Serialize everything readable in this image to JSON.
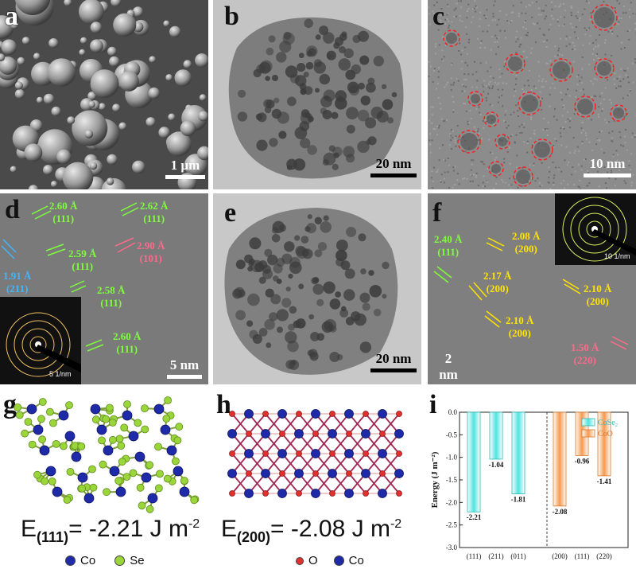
{
  "panels": {
    "a": {
      "label": "a",
      "scale": "1 µm"
    },
    "b": {
      "label": "b",
      "scale": "20 nm"
    },
    "c": {
      "label": "c",
      "scale": "10 nm"
    },
    "d": {
      "label": "d",
      "scale": "5 nm",
      "saed_scale": "5 1/nm",
      "fringes": [
        {
          "d": "2.60 Å",
          "hkl": "(111)",
          "color": "g"
        },
        {
          "d": "2.62 Å",
          "hkl": "(111)",
          "color": "g"
        },
        {
          "d": "2.59 Å",
          "hkl": "(111)",
          "color": "g"
        },
        {
          "d": "2.90 Å",
          "hkl": "(101)",
          "color": "p"
        },
        {
          "d": "1.91 Å",
          "hkl": "(211)",
          "color": "b"
        },
        {
          "d": "2.58 Å",
          "hkl": "(111)",
          "color": "g"
        },
        {
          "d": "2.60 Å",
          "hkl": "(111)",
          "color": "g"
        }
      ]
    },
    "e": {
      "label": "e",
      "scale": "20 nm"
    },
    "f": {
      "label": "f",
      "scale": "2 nm",
      "saed_scale": "10 1/nm",
      "fringes": [
        {
          "d": "2.40 Å",
          "hkl": "(111)",
          "color": "g"
        },
        {
          "d": "2.08 Å",
          "hkl": "(200)",
          "color": "y"
        },
        {
          "d": "2.17 Å",
          "hkl": "(200)",
          "color": "y"
        },
        {
          "d": "2.10 Å",
          "hkl": "(200)",
          "color": "y"
        },
        {
          "d": "2.10 Å",
          "hkl": "(200)",
          "color": "y"
        },
        {
          "d": "1.50 Å",
          "hkl": "(220)",
          "color": "p"
        }
      ]
    },
    "g": {
      "label": "g",
      "formula_e": "E",
      "formula_sub": "(111)",
      "formula_val": "= -2.21 J m",
      "formula_sup": "-2",
      "legend": [
        {
          "name": "Co",
          "color": "#1f2aa8"
        },
        {
          "name": "Se",
          "color": "#9ad63a"
        }
      ]
    },
    "h": {
      "label": "h",
      "formula_e": "E",
      "formula_sub": "(200)",
      "formula_val": "= -2.08 J m",
      "formula_sup": "-2",
      "legend": [
        {
          "name": "O",
          "color": "#e0312f"
        },
        {
          "name": "Co",
          "color": "#1f2aa8"
        }
      ]
    },
    "i": {
      "label": "i"
    }
  },
  "colors": {
    "cose2": "#4fe3e0",
    "coo": "#f59a4f"
  },
  "chart_data": {
    "type": "bar",
    "ylabel": "Energy (J m⁻²)",
    "ylim": [
      -3.0,
      0.0
    ],
    "yticks": [
      "-3.0",
      "-2.5",
      "-2.0",
      "-1.5",
      "-1.0",
      "-0.5",
      "0.0"
    ],
    "y_inverted": true,
    "legend_position": "top-right",
    "series": [
      {
        "name": "CoSe₂",
        "categories": [
          "(111)",
          "(211)",
          "(011)"
        ],
        "values": [
          -2.21,
          -1.04,
          -1.81
        ],
        "labels": [
          "-2.21",
          "-1.04",
          "-1.81"
        ]
      },
      {
        "name": "CoO",
        "categories": [
          "(200)",
          "(111)",
          "(220)"
        ],
        "values": [
          -2.08,
          -0.96,
          -1.41
        ],
        "labels": [
          "-2.08",
          "-0.96",
          "-1.41"
        ]
      }
    ]
  }
}
